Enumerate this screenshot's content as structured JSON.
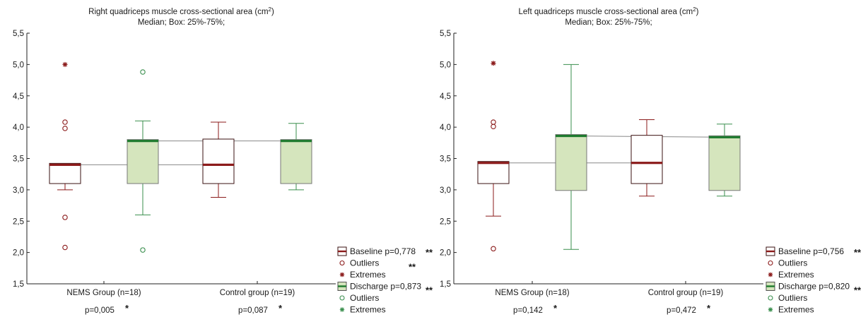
{
  "colors": {
    "baseline": "#8b1a1a",
    "discharge_fill": "#d5e5bd",
    "discharge_median": "#1e7a2e",
    "discharge_line": "#3a8f4e",
    "connector": "#888888",
    "axis": "#222222"
  },
  "chart_data": [
    {
      "type": "box",
      "title": "Right quadriceps muscle cross-sectional area (cm",
      "title_sup": "2",
      "title_tail": ")",
      "subtitle": "Median; Box: 25%-75%;",
      "ylim": [
        1.5,
        5.5
      ],
      "yticks": [
        "1,5",
        "2,0",
        "2,5",
        "3,0",
        "3,5",
        "4,0",
        "4,5",
        "5,0",
        "5,5"
      ],
      "ytick_values": [
        1.5,
        2.0,
        2.5,
        3.0,
        3.5,
        4.0,
        4.5,
        5.0,
        5.5
      ],
      "grid": false,
      "legend_position": "bottom-right",
      "categories": [
        "NEMS Group (n=18)",
        "Control group (n=19)"
      ],
      "category_pvalues": [
        "p=0,005",
        "p=0,087"
      ],
      "category_marks": [
        "*",
        "*"
      ],
      "series": [
        {
          "name": "Baseline p=0,778",
          "boxes": [
            {
              "q1": 3.1,
              "median": 3.4,
              "q3": 3.41,
              "whisker_low": 3.0,
              "whisker_high": 3.41,
              "outliers": [
                4.08,
                3.98,
                2.56,
                2.08
              ],
              "extremes": [
                5.0
              ]
            },
            {
              "q1": 3.1,
              "median": 3.4,
              "q3": 3.81,
              "whisker_low": 2.88,
              "whisker_high": 4.08,
              "outliers": [],
              "extremes": []
            }
          ]
        },
        {
          "name": "Discharge p=0,873",
          "boxes": [
            {
              "q1": 3.1,
              "median": 3.78,
              "q3": 3.78,
              "whisker_low": 2.6,
              "whisker_high": 4.1,
              "outliers": [
                4.88,
                2.04
              ],
              "extremes": []
            },
            {
              "q1": 3.1,
              "median": 3.78,
              "q3": 3.78,
              "whisker_low": 3.0,
              "whisker_high": 4.06,
              "outliers": [],
              "extremes": []
            }
          ]
        }
      ],
      "legend": [
        {
          "kind": "box",
          "series": 0,
          "label": "Baseline p=0,778",
          "mark": "**"
        },
        {
          "kind": "outlier",
          "series": 0,
          "label": "Outliers",
          "mark": "**"
        },
        {
          "kind": "extreme",
          "series": 0,
          "label": "Extremes",
          "mark": ""
        },
        {
          "kind": "box",
          "series": 1,
          "label": "Discharge p=0,873",
          "mark": "**"
        },
        {
          "kind": "outlier",
          "series": 1,
          "label": "Outliers",
          "mark": ""
        },
        {
          "kind": "extreme",
          "series": 1,
          "label": "Extremes",
          "mark": ""
        }
      ]
    },
    {
      "type": "box",
      "title": "Left quadriceps muscle cross-sectional area (cm",
      "title_sup": "2",
      "title_tail": ")",
      "subtitle": "Median; Box: 25%-75%;",
      "ylim": [
        1.5,
        5.5
      ],
      "yticks": [
        "1,5",
        "2,0",
        "2,5",
        "3,0",
        "3,5",
        "4,0",
        "4,5",
        "5,0",
        "5,5"
      ],
      "ytick_values": [
        1.5,
        2.0,
        2.5,
        3.0,
        3.5,
        4.0,
        4.5,
        5.0,
        5.5
      ],
      "grid": false,
      "legend_position": "bottom-right",
      "categories": [
        "NEMS Group (n=18)",
        "Control group (n=19)"
      ],
      "category_pvalues": [
        "p=0,142",
        "p=0,472"
      ],
      "category_marks": [
        "*",
        "*"
      ],
      "series": [
        {
          "name": "Baseline p=0,756",
          "boxes": [
            {
              "q1": 3.1,
              "median": 3.43,
              "q3": 3.43,
              "whisker_low": 2.58,
              "whisker_high": 3.43,
              "outliers": [
                4.08,
                4.01,
                2.06
              ],
              "extremes": [
                5.02
              ]
            },
            {
              "q1": 3.1,
              "median": 3.43,
              "q3": 3.87,
              "whisker_low": 2.9,
              "whisker_high": 4.12,
              "outliers": [],
              "extremes": []
            }
          ]
        },
        {
          "name": "Discharge p=0,820",
          "boxes": [
            {
              "q1": 2.99,
              "median": 3.86,
              "q3": 3.86,
              "whisker_low": 2.05,
              "whisker_high": 5.0,
              "outliers": [],
              "extremes": []
            },
            {
              "q1": 2.99,
              "median": 3.84,
              "q3": 3.84,
              "whisker_low": 2.9,
              "whisker_high": 4.05,
              "outliers": [],
              "extremes": []
            }
          ]
        }
      ],
      "legend": [
        {
          "kind": "box",
          "series": 0,
          "label": "Baseline p=0,756",
          "mark": "**"
        },
        {
          "kind": "outlier",
          "series": 0,
          "label": "Outliers",
          "mark": ""
        },
        {
          "kind": "extreme",
          "series": 0,
          "label": "Extremes",
          "mark": ""
        },
        {
          "kind": "box",
          "series": 1,
          "label": "Discharge p=0,820",
          "mark": "**"
        },
        {
          "kind": "outlier",
          "series": 1,
          "label": "Outliers",
          "mark": ""
        },
        {
          "kind": "extreme",
          "series": 1,
          "label": "Extremes",
          "mark": ""
        }
      ]
    }
  ]
}
